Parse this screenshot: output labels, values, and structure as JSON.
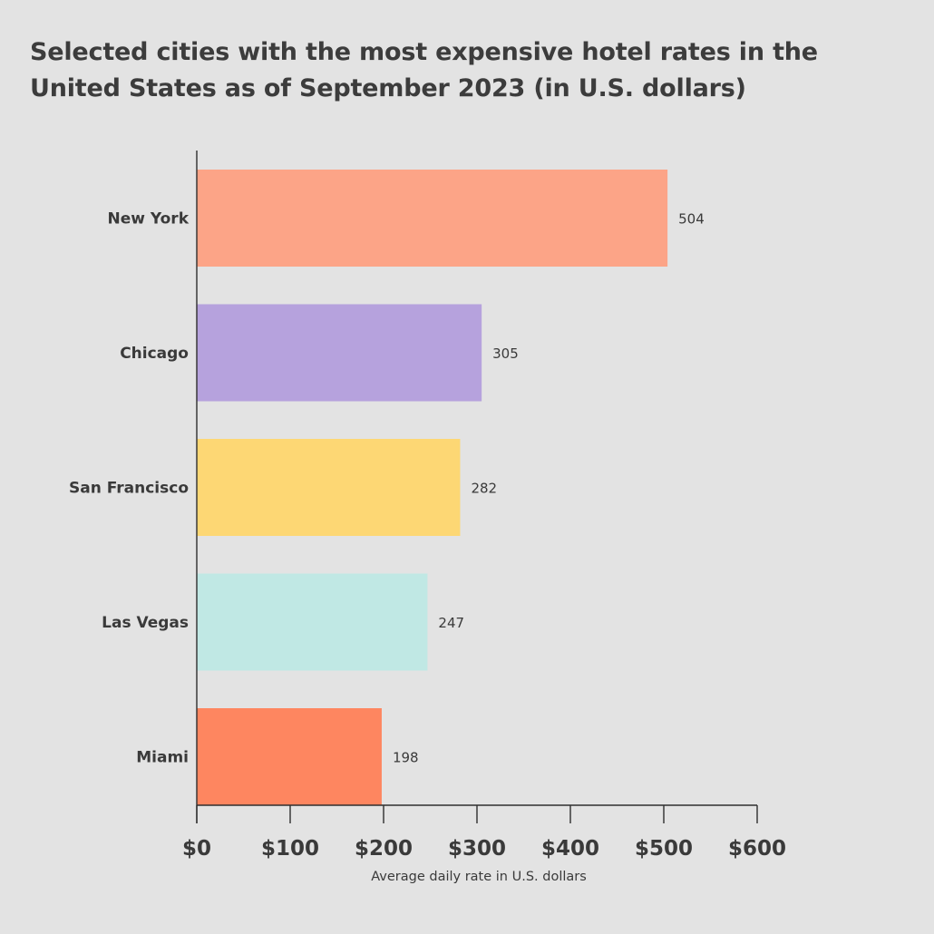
{
  "chart_data": {
    "type": "bar",
    "orientation": "horizontal",
    "title": "Selected cities with the most expensive hotel rates in the United States as of September 2023 (in U.S. dollars)",
    "xlabel": "Average daily rate in U.S. dollars",
    "ylabel": "",
    "categories": [
      "New York",
      "Chicago",
      "San Francisco",
      "Las Vegas",
      "Miami"
    ],
    "values": [
      504,
      305,
      282,
      247,
      198
    ],
    "value_labels": [
      "504",
      "305",
      "282",
      "247",
      "198"
    ],
    "bar_colors": [
      "#fca487",
      "#b6a2dd",
      "#fdd774",
      "#c0e8e4",
      "#fe8660"
    ],
    "xlim": [
      0,
      600
    ],
    "ticks": [
      0,
      100,
      200,
      300,
      400,
      500,
      600
    ],
    "tick_labels": [
      "$0",
      "$100",
      "$200",
      "$300",
      "$400",
      "$500",
      "$600"
    ],
    "grid": false,
    "legend": "none"
  }
}
